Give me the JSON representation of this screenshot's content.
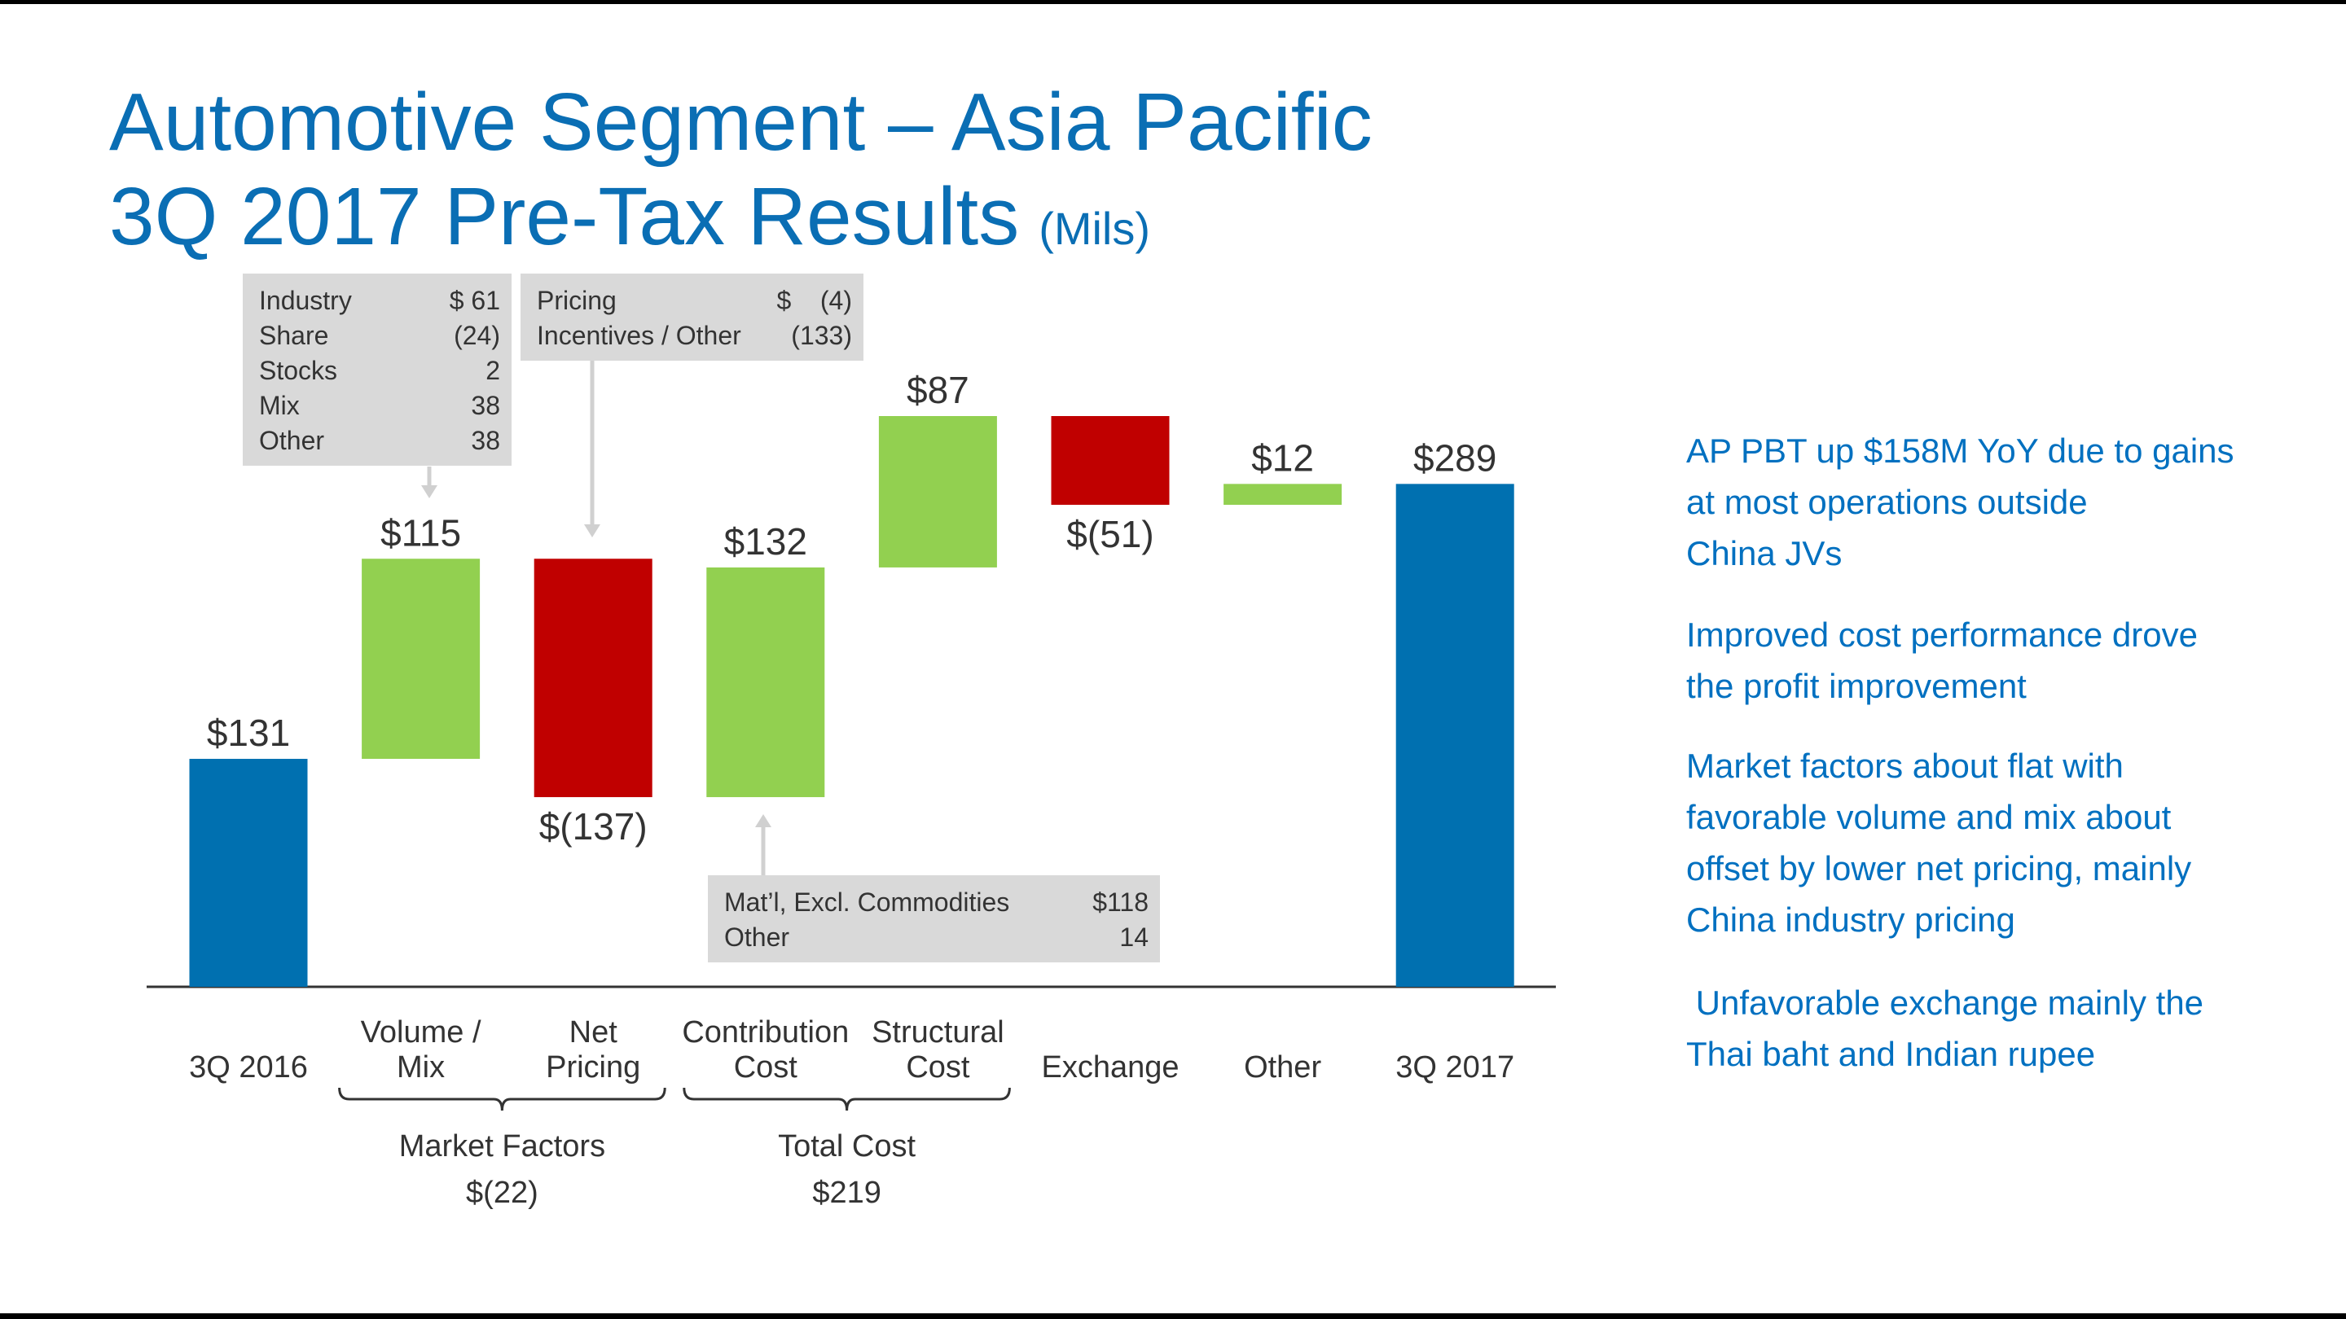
{
  "chart_data": {
    "type": "waterfall",
    "title": [
      "Automotive Segment – Asia Pacific",
      "3Q 2017 Pre-Tax Results"
    ],
    "units": "(Mils)",
    "categories": [
      [
        "3Q 2016"
      ],
      [
        "Volume /",
        "Mix"
      ],
      [
        "Net",
        "Pricing"
      ],
      [
        "Contribution",
        "Cost"
      ],
      [
        "Structural",
        "Cost"
      ],
      [
        "Exchange"
      ],
      [
        "Other"
      ],
      [
        "3Q 2017"
      ]
    ],
    "values": [
      131,
      115,
      -137,
      132,
      87,
      -51,
      12,
      289
    ],
    "value_labels": [
      "$131",
      "$115",
      "$(137)",
      "$132",
      "$87",
      "$(51)",
      "$12",
      "$289"
    ],
    "is_total": [
      true,
      false,
      false,
      false,
      false,
      false,
      false,
      true
    ],
    "colors": {
      "total": "#0070b0",
      "increase": "#92d050",
      "decrease": "#c00000"
    },
    "groups": [
      {
        "label": "Market Factors",
        "value_label": "$(22)"
      },
      {
        "label": "Total Cost",
        "value_label": "$219"
      }
    ],
    "callouts": [
      {
        "rows": [
          [
            "Industry",
            "$ 61"
          ],
          [
            "Share",
            "(24)"
          ],
          [
            "Stocks",
            "2"
          ],
          [
            "Mix",
            "38"
          ],
          [
            "Other",
            "38"
          ]
        ]
      },
      {
        "rows": [
          [
            "Pricing",
            "$    (4)"
          ],
          [
            "Incentives / Other",
            "(133)"
          ]
        ]
      },
      {
        "rows": [
          [
            "Mat’l, Excl. Commodities",
            "$118"
          ],
          [
            "Other",
            "14"
          ]
        ]
      }
    ]
  },
  "bullets": [
    [
      "AP PBT up $158M YoY due to gains",
      "at most operations outside",
      "China JVs"
    ],
    [
      "Improved cost performance drove",
      "the profit improvement"
    ],
    [
      "Market factors about flat with",
      "favorable volume and mix about",
      "offset by lower net pricing, mainly",
      "China industry pricing"
    ],
    [
      " Unfavorable exchange mainly the",
      "Thai baht and Indian rupee"
    ]
  ]
}
